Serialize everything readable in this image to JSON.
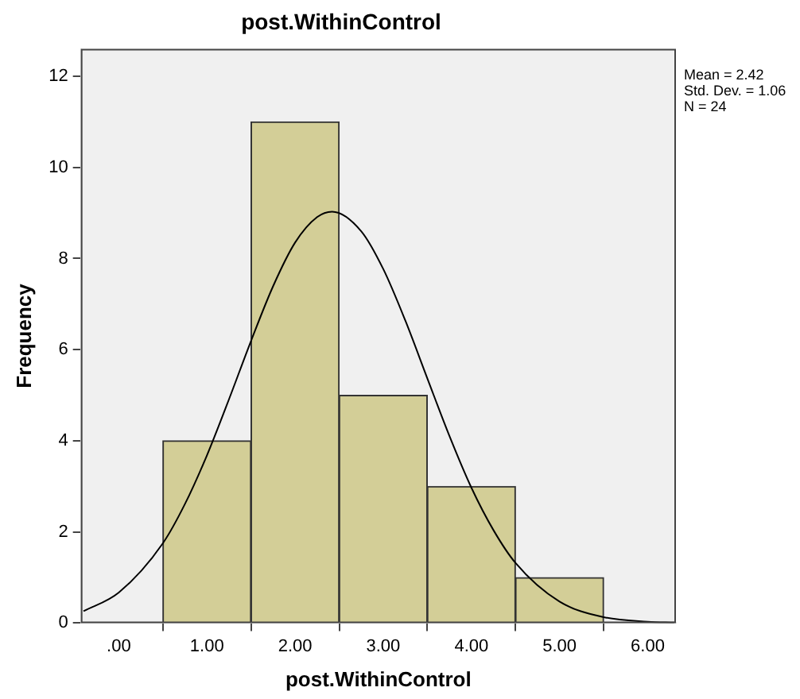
{
  "chart_data": {
    "type": "histogram",
    "title": "post.WithinControl",
    "xlabel": "post.WithinControl",
    "ylabel": "Frequency",
    "bins": [
      0.5,
      1.5,
      2.5,
      3.5,
      4.5,
      5.5
    ],
    "values": [
      4,
      11,
      5,
      3,
      1
    ],
    "color": "#d3ce97",
    "series": [
      {
        "type": "line",
        "color": "#000000",
        "x": [
          -0.4,
          0,
          0.5,
          0.75,
          1,
          1.25,
          1.5,
          1.75,
          2,
          2.25,
          2.42,
          2.75,
          3,
          3.25,
          3.5,
          3.75,
          4,
          4.25,
          4.5,
          5,
          5.5,
          6,
          6.3
        ],
        "values": [
          0.26,
          0.67,
          1.75,
          2.61,
          3.68,
          4.91,
          6.19,
          7.39,
          8.35,
          8.91,
          9.03,
          8.6,
          7.77,
          6.64,
          5.37,
          4.11,
          2.97,
          2.04,
          1.32,
          0.47,
          0.13,
          0.03,
          0.01
        ]
      }
    ],
    "xlim": [
      -0.43,
      6.32
    ],
    "xticks": [
      {
        "value": 0,
        "label": ".00"
      },
      {
        "value": 1,
        "label": "1.00"
      },
      {
        "value": 2,
        "label": "2.00"
      },
      {
        "value": 3,
        "label": "3.00"
      },
      {
        "value": 4,
        "label": "4.00"
      },
      {
        "value": 5,
        "label": "5.00"
      },
      {
        "value": 6,
        "label": "6.00"
      }
    ],
    "ylim": [
      0,
      12.6
    ],
    "yticks": [
      0,
      2,
      4,
      6,
      8,
      10,
      12
    ],
    "grid": false,
    "legend": false,
    "marker": "none",
    "line_style": "solid",
    "annotations": [
      "Mean = 2.42",
      "Std. Dev. = 1.06",
      "N = 24"
    ]
  }
}
